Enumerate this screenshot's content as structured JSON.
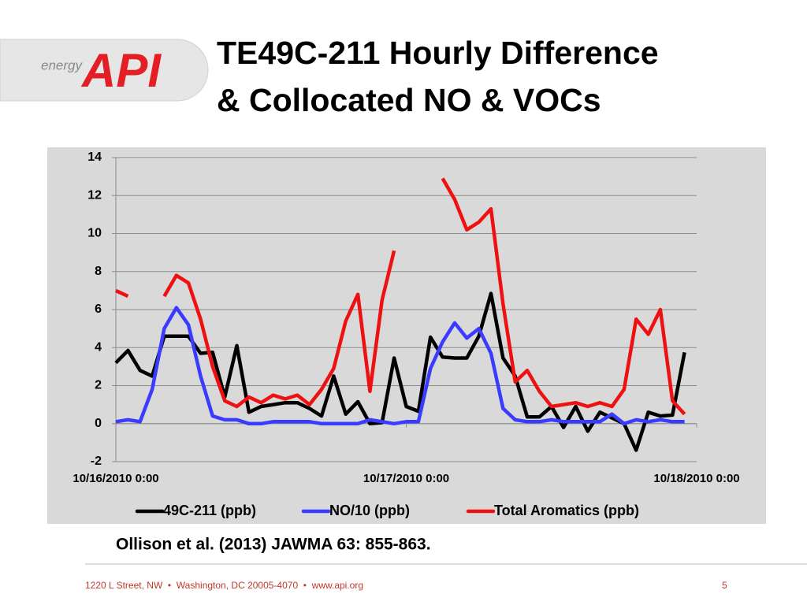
{
  "logo": {
    "tagline": "energy",
    "name": "API"
  },
  "title": [
    "TE49C-211 Hourly Difference",
    "& Collocated NO & VOCs"
  ],
  "chart_data": {
    "type": "line",
    "x": [
      "10/16/2010 0:00",
      "10/16/2010 1:00",
      "10/16/2010 2:00",
      "10/16/2010 3:00",
      "10/16/2010 4:00",
      "10/16/2010 5:00",
      "10/16/2010 6:00",
      "10/16/2010 7:00",
      "10/16/2010 8:00",
      "10/16/2010 9:00",
      "10/16/2010 10:00",
      "10/16/2010 11:00",
      "10/16/2010 12:00",
      "10/16/2010 13:00",
      "10/16/2010 14:00",
      "10/16/2010 15:00",
      "10/16/2010 16:00",
      "10/16/2010 17:00",
      "10/16/2010 18:00",
      "10/16/2010 19:00",
      "10/16/2010 20:00",
      "10/16/2010 21:00",
      "10/16/2010 22:00",
      "10/16/2010 23:00",
      "10/17/2010 0:00",
      "10/17/2010 1:00",
      "10/17/2010 2:00",
      "10/17/2010 3:00",
      "10/17/2010 4:00",
      "10/17/2010 5:00",
      "10/17/2010 6:00",
      "10/17/2010 7:00",
      "10/17/2010 8:00",
      "10/17/2010 9:00",
      "10/17/2010 10:00",
      "10/17/2010 11:00",
      "10/17/2010 12:00",
      "10/17/2010 13:00",
      "10/17/2010 14:00",
      "10/17/2010 15:00",
      "10/17/2010 16:00",
      "10/17/2010 17:00",
      "10/17/2010 18:00",
      "10/17/2010 19:00",
      "10/17/2010 20:00",
      "10/17/2010 21:00",
      "10/17/2010 22:00",
      "10/17/2010 23:00"
    ],
    "xlim": [
      "10/16/2010 0:00",
      "10/18/2010 0:00"
    ],
    "xticks": [
      "10/16/2010 0:00",
      "10/17/2010 0:00",
      "10/18/2010 0:00"
    ],
    "ylim": [
      -2,
      14
    ],
    "yticks": [
      -2,
      0,
      2,
      4,
      6,
      8,
      10,
      12,
      14
    ],
    "grid": true,
    "series": [
      {
        "name": "49C-211 (ppb)",
        "color": "#000000",
        "values": [
          3.2,
          3.85,
          2.8,
          2.5,
          4.6,
          4.6,
          4.6,
          3.7,
          3.75,
          1.4,
          4.1,
          0.6,
          0.9,
          1.0,
          1.1,
          1.1,
          0.8,
          0.4,
          2.5,
          0.5,
          1.15,
          0.0,
          0.05,
          3.45,
          0.9,
          0.65,
          4.55,
          3.5,
          3.45,
          3.45,
          4.6,
          6.85,
          3.45,
          2.5,
          0.35,
          0.35,
          0.9,
          -0.2,
          0.9,
          -0.4,
          0.6,
          0.3,
          0.0,
          -1.4,
          0.6,
          0.4,
          0.45,
          3.75
        ]
      },
      {
        "name": "NO/10 (ppb)",
        "color": "#3b3bff",
        "values": [
          0.1,
          0.2,
          0.1,
          1.8,
          5.0,
          6.1,
          5.2,
          2.5,
          0.4,
          0.2,
          0.2,
          0.0,
          0.0,
          0.1,
          0.1,
          0.1,
          0.1,
          0.0,
          0.0,
          0.0,
          0.0,
          0.2,
          0.1,
          0.0,
          0.1,
          0.1,
          2.9,
          4.3,
          5.3,
          4.5,
          5.0,
          3.7,
          0.8,
          0.2,
          0.1,
          0.1,
          0.2,
          0.1,
          0.1,
          0.1,
          0.1,
          0.5,
          0.0,
          0.2,
          0.1,
          0.2,
          0.1,
          0.1
        ]
      },
      {
        "name": "Total Aromatics (ppb)",
        "color": "#ee1111",
        "values": [
          7.0,
          6.7,
          null,
          null,
          6.7,
          7.8,
          7.4,
          5.5,
          3.0,
          1.2,
          0.9,
          1.4,
          1.1,
          1.5,
          1.3,
          1.5,
          1.0,
          1.8,
          2.9,
          5.4,
          6.8,
          1.7,
          6.5,
          9.1,
          null,
          null,
          null,
          12.9,
          11.8,
          10.2,
          10.6,
          11.3,
          6.3,
          2.2,
          2.8,
          1.7,
          0.9,
          1.0,
          1.1,
          0.9,
          1.1,
          0.9,
          1.8,
          5.5,
          4.7,
          6.0,
          1.2,
          0.5
        ]
      }
    ]
  },
  "citation": "Ollison et al. (2013) JAWMA 63: 855-863.",
  "footer": {
    "address": "1220 L Street, NW  •  Washington, DC 20005-4070  •  www.api.org",
    "page": "5"
  }
}
